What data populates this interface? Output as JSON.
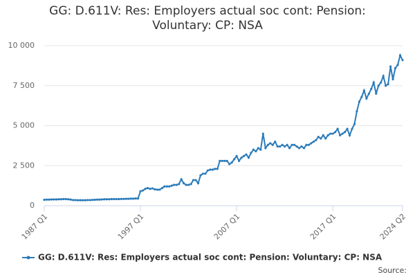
{
  "chart_data": {
    "type": "line",
    "title": "GG: D.611V: Res: Employers actual soc cont: Pension: Voluntary: CP: NSA",
    "source": "Source:",
    "categories": [
      "1987 Q1",
      null,
      null,
      null,
      null,
      null,
      null,
      null,
      null,
      null,
      null,
      null,
      null,
      null,
      null,
      null,
      null,
      null,
      null,
      null,
      null,
      null,
      null,
      null,
      null,
      null,
      null,
      null,
      null,
      null,
      null,
      null,
      null,
      null,
      null,
      null,
      null,
      null,
      null,
      null,
      "1997 Q1",
      null,
      null,
      null,
      null,
      null,
      null,
      null,
      null,
      null,
      null,
      null,
      null,
      null,
      null,
      null,
      null,
      null,
      null,
      null,
      null,
      null,
      null,
      null,
      null,
      null,
      null,
      null,
      null,
      null,
      null,
      null,
      null,
      null,
      null,
      null,
      null,
      null,
      null,
      null,
      "2007 Q1",
      null,
      null,
      null,
      null,
      null,
      null,
      null,
      null,
      null,
      null,
      null,
      null,
      null,
      null,
      null,
      null,
      null,
      null,
      null,
      null,
      null,
      null,
      null,
      null,
      null,
      null,
      null,
      null,
      null,
      null,
      null,
      null,
      null,
      null,
      null,
      null,
      null,
      null,
      null,
      "2017 Q1",
      null,
      null,
      null,
      null,
      null,
      null,
      null,
      null,
      null,
      null,
      null,
      null,
      null,
      null,
      null,
      null,
      null,
      null,
      null,
      null,
      null,
      null,
      null,
      null,
      null,
      null,
      null,
      null,
      "2024 Q2"
    ],
    "series": [
      {
        "name": "GG: D.611V: Res: Employers actual soc cont: Pension: Voluntary: CP: NSA",
        "color": "#2b7bb9",
        "values": [
          370,
          380,
          380,
          390,
          390,
          390,
          400,
          400,
          410,
          410,
          400,
          380,
          350,
          350,
          340,
          340,
          340,
          340,
          350,
          350,
          360,
          370,
          380,
          380,
          390,
          400,
          400,
          400,
          410,
          410,
          410,
          410,
          420,
          420,
          430,
          430,
          440,
          440,
          450,
          450,
          900,
          950,
          1050,
          1100,
          1050,
          1080,
          1020,
          1000,
          1000,
          1100,
          1200,
          1200,
          1200,
          1250,
          1300,
          1300,
          1350,
          1650,
          1400,
          1300,
          1300,
          1350,
          1600,
          1600,
          1400,
          1900,
          2000,
          2000,
          2200,
          2250,
          2250,
          2300,
          2300,
          2800,
          2800,
          2800,
          2800,
          2600,
          2700,
          2900,
          3100,
          2800,
          3000,
          3100,
          3200,
          3000,
          3300,
          3500,
          3400,
          3600,
          3500,
          4500,
          3600,
          3800,
          3900,
          3800,
          4000,
          3700,
          3700,
          3800,
          3700,
          3800,
          3600,
          3800,
          3800,
          3700,
          3600,
          3700,
          3600,
          3800,
          3800,
          3900,
          4000,
          4100,
          4300,
          4200,
          4400,
          4200,
          4400,
          4500,
          4500,
          4600,
          4800,
          4400,
          4500,
          4600,
          4800,
          4400,
          4800,
          5100,
          5900,
          6500,
          6800,
          7200,
          6700,
          7000,
          7300,
          7700,
          7000,
          7500,
          7700,
          8100,
          7500,
          7600,
          8700,
          7900,
          8600,
          8800,
          9400,
          9100
        ]
      }
    ],
    "ylim": [
      0,
      10000
    ],
    "yticks": [
      0,
      {
        "value": 2500,
        "label": "2 500"
      },
      {
        "value": 5000,
        "label": "5 000"
      },
      {
        "value": 7500,
        "label": "7 500"
      },
      {
        "value": 10000,
        "label": "10 000"
      }
    ],
    "grid": true
  }
}
